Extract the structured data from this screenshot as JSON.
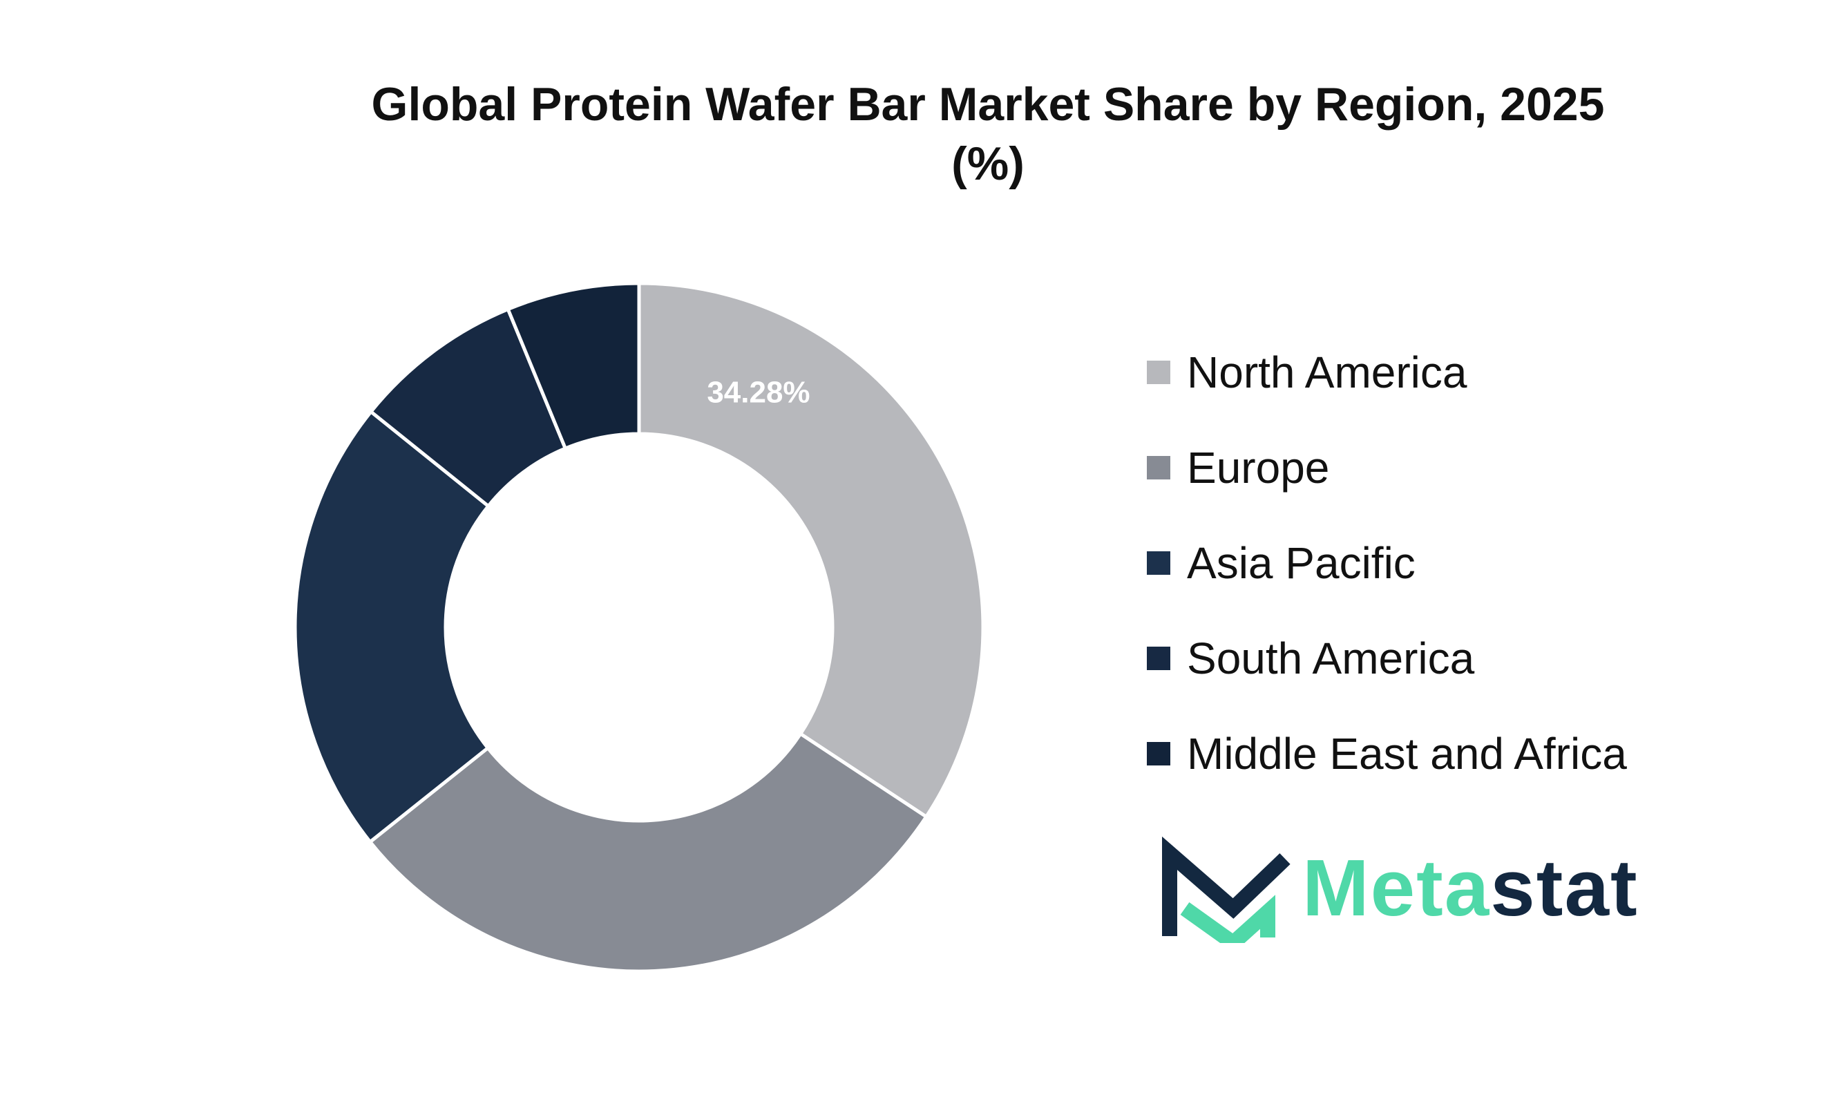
{
  "chart_data": {
    "type": "pie",
    "donut": true,
    "title": "Global Protein Wafer Bar Market Share by Region, 2025 (%)",
    "title_lines": [
      "Global Protein Wafer Bar Market Share by Region, 2025",
      "(%)"
    ],
    "categories": [
      "North America",
      "Europe",
      "Asia Pacific",
      "South America",
      "Middle East and Africa"
    ],
    "values": [
      34.28,
      30.0,
      21.5,
      8.0,
      6.22
    ],
    "data_labels": [
      "34.28%",
      "",
      "",
      "",
      ""
    ],
    "colors": [
      "#b7b8bc",
      "#878b94",
      "#1c314c",
      "#172943",
      "#12233a"
    ],
    "legend_placement": "right"
  },
  "branding": {
    "logo_text_primary": "Meta",
    "logo_text_secondary": "stat",
    "logo_primary_color": "#4fd8a8",
    "logo_secondary_color": "#132840",
    "logo_icon": "metastat-m-logo-icon"
  }
}
